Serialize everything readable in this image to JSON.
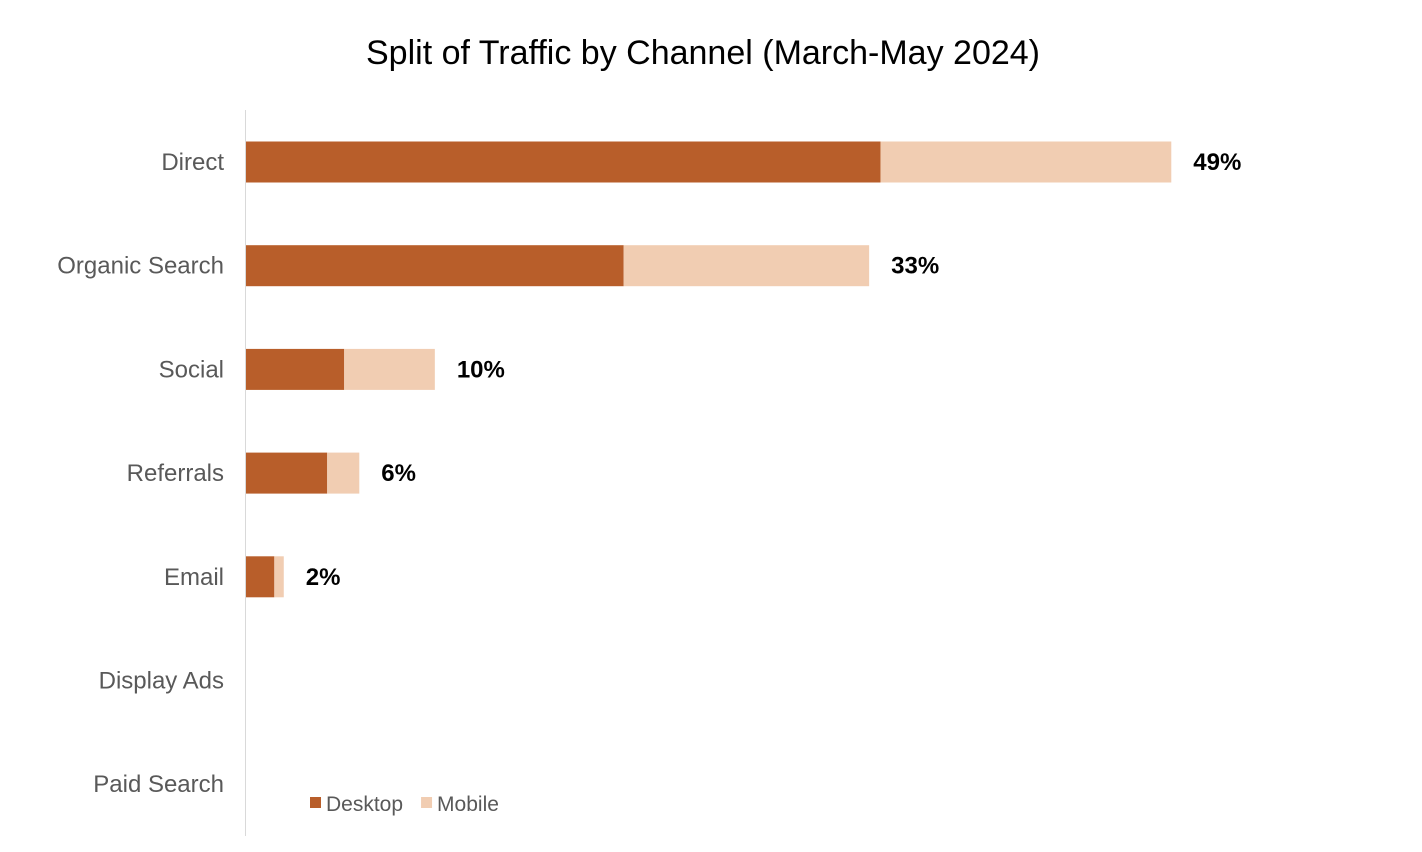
{
  "chart_data": {
    "type": "bar",
    "orientation": "horizontal",
    "stacked": true,
    "title": "Split of Traffic by Channel (March-May 2024)",
    "categories": [
      "Direct",
      "Organic Search",
      "Social",
      "Referrals",
      "Email",
      "Display Ads",
      "Paid Search"
    ],
    "series": [
      {
        "name": "Desktop",
        "color": "#B85E2A",
        "values": [
          33.6,
          20.0,
          5.2,
          4.3,
          1.5,
          0,
          0
        ]
      },
      {
        "name": "Mobile",
        "color": "#F1CDB2",
        "values": [
          15.4,
          13.0,
          4.8,
          1.7,
          0.5,
          0,
          0
        ]
      }
    ],
    "total_labels": [
      "49%",
      "33%",
      "10%",
      "6%",
      "2%",
      "",
      ""
    ],
    "xlim": [
      0,
      60
    ],
    "x_axis_visible": false,
    "grid": false,
    "legend": {
      "position": "bottom-left",
      "entries": [
        "Desktop",
        "Mobile"
      ]
    }
  }
}
